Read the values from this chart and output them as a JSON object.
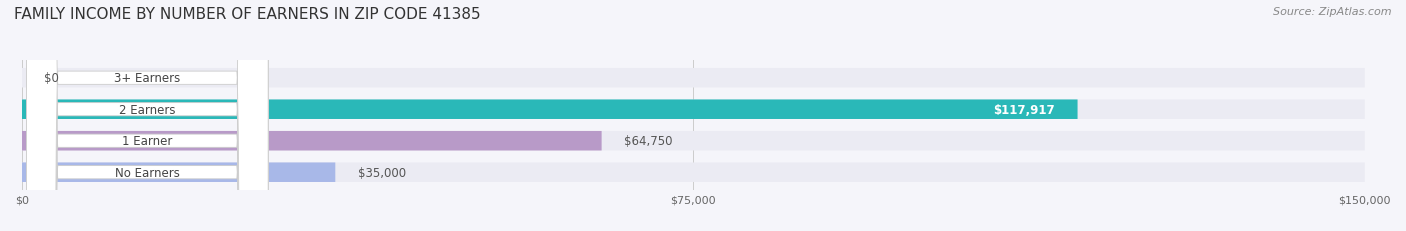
{
  "title": "FAMILY INCOME BY NUMBER OF EARNERS IN ZIP CODE 41385",
  "source": "Source: ZipAtlas.com",
  "categories": [
    "No Earners",
    "1 Earner",
    "2 Earners",
    "3+ Earners"
  ],
  "values": [
    35000,
    64750,
    117917,
    0
  ],
  "labels": [
    "$35,000",
    "$64,750",
    "$117,917",
    "$0"
  ],
  "bar_colors": [
    "#a8b8e8",
    "#b89ac8",
    "#2ab8b8",
    "#b8c0e8"
  ],
  "xlim": [
    0,
    150000
  ],
  "xticks": [
    0,
    75000,
    150000
  ],
  "xticklabels": [
    "$0",
    "$75,000",
    "$150,000"
  ],
  "title_fontsize": 11,
  "source_fontsize": 8,
  "label_fontsize": 8.5,
  "bar_height": 0.62,
  "background_color": "#f5f5fa",
  "row_bg_color": "#ebebf3"
}
